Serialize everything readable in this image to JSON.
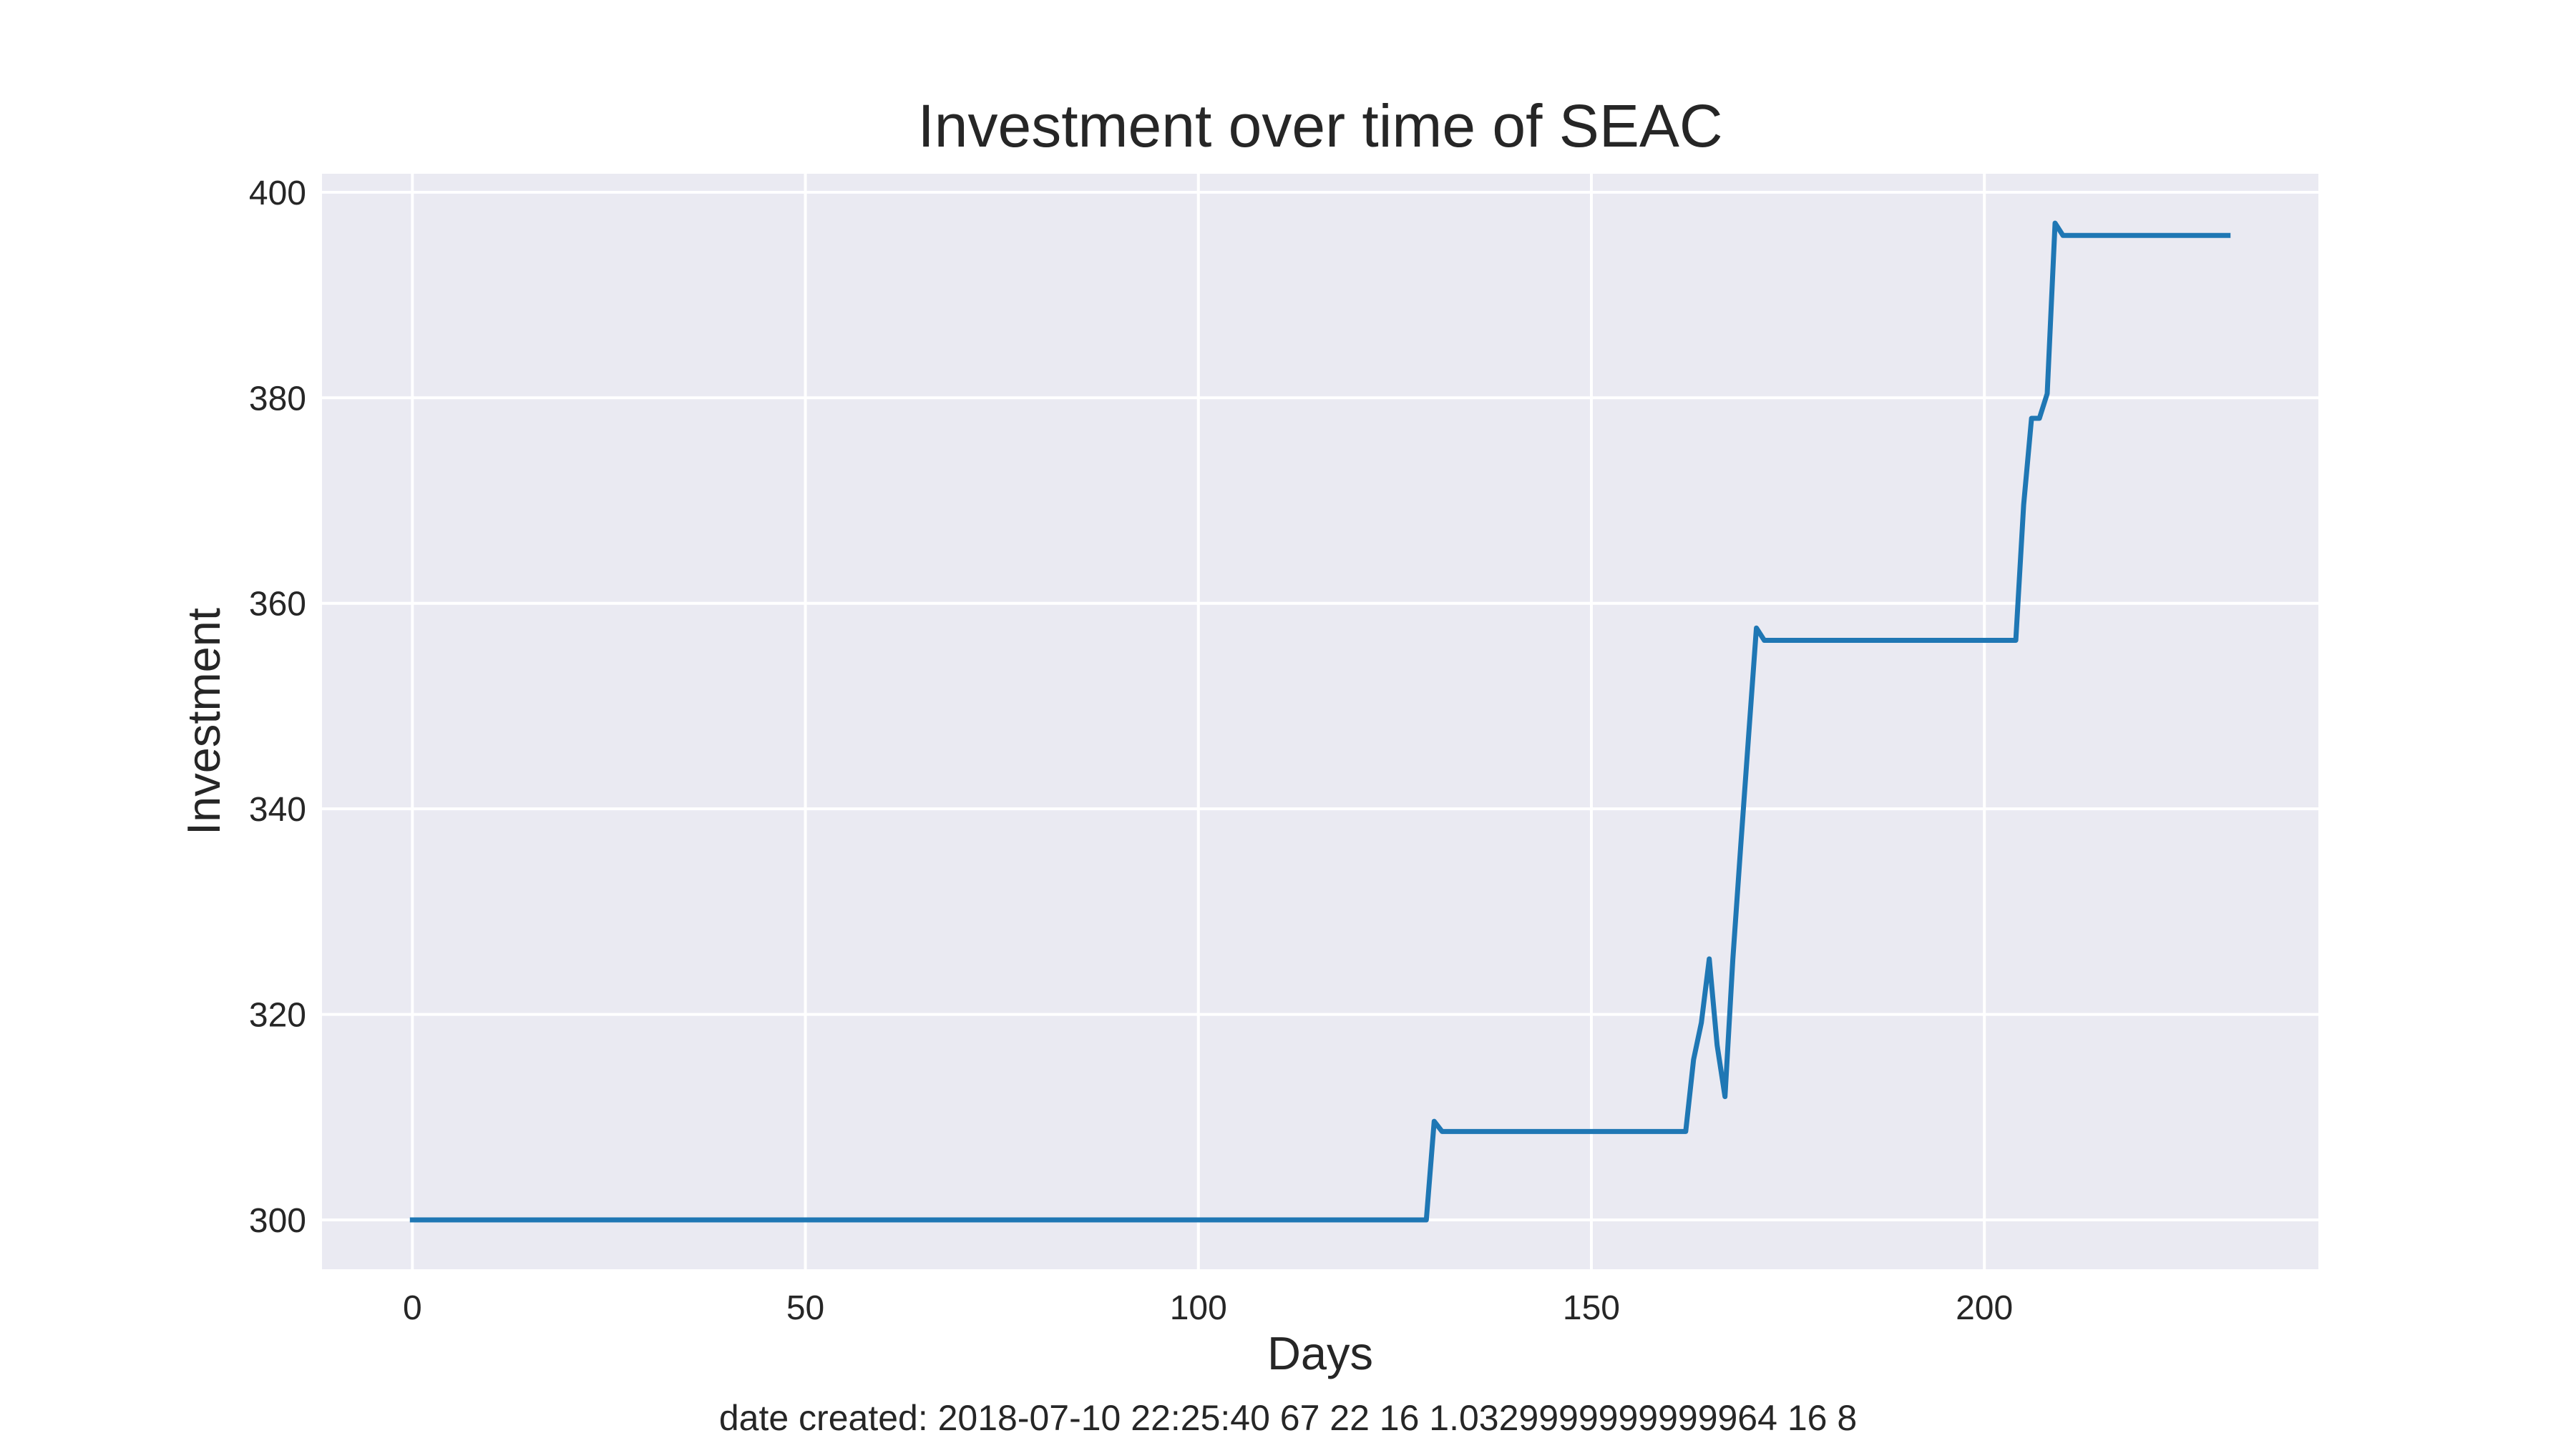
{
  "chart_data": {
    "type": "line",
    "title": "Investment over time of SEAC",
    "xlabel": "Days",
    "ylabel": "Investment",
    "xlim": [
      -11.5,
      242.5
    ],
    "ylim": [
      295.2,
      401.8
    ],
    "xticks": [
      0,
      50,
      100,
      150,
      200
    ],
    "yticks": [
      300,
      320,
      340,
      360,
      380,
      400
    ],
    "xtick_labels": [
      "0",
      "50",
      "100",
      "150",
      "200"
    ],
    "ytick_labels": [
      "300",
      "320",
      "340",
      "360",
      "380",
      "400"
    ],
    "grid": true,
    "background": "#eaeaf2",
    "grid_color": "#ffffff",
    "series": [
      {
        "name": "SEAC",
        "color": "#1f77b4",
        "points": [
          [
            0,
            300
          ],
          [
            129,
            300
          ],
          [
            130,
            309.6
          ],
          [
            131,
            308.6
          ],
          [
            162,
            308.6
          ],
          [
            163,
            315.6
          ],
          [
            164,
            319.2
          ],
          [
            165,
            325.4
          ],
          [
            166,
            317
          ],
          [
            167,
            312
          ],
          [
            168,
            325.4
          ],
          [
            169,
            336.4
          ],
          [
            170,
            347
          ],
          [
            171,
            357.6
          ],
          [
            172,
            356.4
          ],
          [
            204,
            356.4
          ],
          [
            205,
            369.6
          ],
          [
            206,
            378
          ],
          [
            207,
            378
          ],
          [
            208,
            380.4
          ],
          [
            209,
            397
          ],
          [
            210,
            395.8
          ],
          [
            231,
            395.8
          ]
        ]
      }
    ]
  },
  "footer": {
    "text": "date created: 2018-07-10 22:25:40 67 22 16 1.0329999999999964 16 8"
  }
}
